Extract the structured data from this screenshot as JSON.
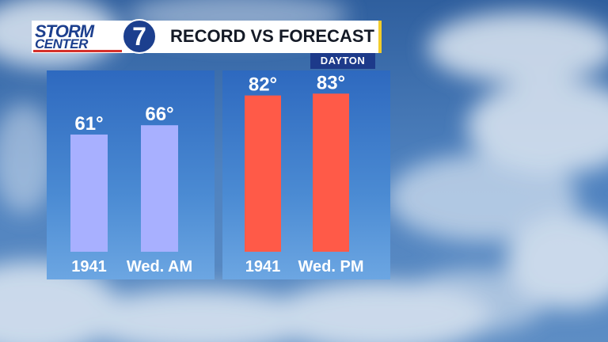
{
  "header": {
    "logo_line1": "STORM",
    "logo_line2": "CENTER",
    "logo_number": "7",
    "title": "RECORD VS FORECAST",
    "location": "DAYTON"
  },
  "colors": {
    "record_low": "#a8b0ff",
    "record_high": "#ff5a48",
    "panel": "#3b78c8",
    "header_accent": "#f2cc2a",
    "brand_blue": "#1d3a8a"
  },
  "chart_data": [
    {
      "type": "bar",
      "categories": [
        "1941",
        "Wed. AM"
      ],
      "values": [
        61,
        66
      ],
      "data_labels": [
        "61°",
        "66°"
      ],
      "color": "#a8b0ff"
    },
    {
      "type": "bar",
      "categories": [
        "1941",
        "Wed. PM"
      ],
      "values": [
        82,
        83
      ],
      "data_labels": [
        "82°",
        "83°"
      ],
      "color": "#ff5a48"
    }
  ]
}
